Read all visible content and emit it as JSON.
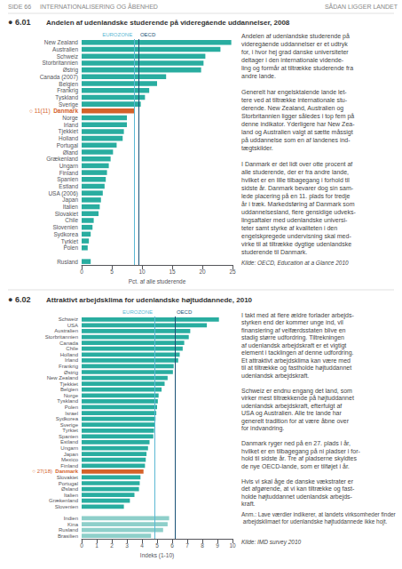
{
  "header": [
    "SIDE 66",
    "INTERNATIONALISERING OG ÅBENHED",
    "SÅDAN LIGGER LANDET"
  ],
  "chart_data": [
    {
      "type": "bar",
      "orientation": "horizontal",
      "title_number": "● 6.01",
      "title": "Andelen af udenlandske studerende på videregáende uddannelser, 2008",
      "xlabel": "Pct. af alle studerende",
      "categories": [
        "New Zealand",
        "Australien",
        "Schweiz",
        "Storbritannien",
        "Østrig",
        "Canada (2007)",
        "Belgien",
        "Frankrig",
        "Tyskland",
        "Sverige",
        "Danmark",
        "Norge",
        "Irland",
        "Tjekkiet",
        "Holland",
        "Portugal",
        "Øland",
        "Grækenland",
        "Ungarn",
        "Finland",
        "Spanien",
        "Estland",
        "USA (2006)",
        "Japan",
        "Italien",
        "Slovakiet",
        "Chile",
        "Slovenien",
        "Sydkorea",
        "Tyrkiet",
        "Polen",
        null,
        "Rusland"
      ],
      "values": [
        24.8,
        23.0,
        20.5,
        20.2,
        19.8,
        14.0,
        12.5,
        11.2,
        10.5,
        9.8,
        8.7,
        7.5,
        7.5,
        7.0,
        6.8,
        5.8,
        5.2,
        4.8,
        4.5,
        4.2,
        4.0,
        3.8,
        3.5,
        3.2,
        3.0,
        2.8,
        2.0,
        1.8,
        1.5,
        1.2,
        1.0,
        0,
        1.5
      ],
      "colors": [
        "#29ADA0",
        "#29ADA0",
        "#29ADA0",
        "#29ADA0",
        "#29ADA0",
        "#29ADA0",
        "#29ADA0",
        "#29ADA0",
        "#29ADA0",
        "#29ADA0",
        "#D4622A",
        "#29ADA0",
        "#29ADA0",
        "#29ADA0",
        "#29ADA0",
        "#29ADA0",
        "#29ADA0",
        "#29ADA0",
        "#29ADA0",
        "#29ADA0",
        "#29ADA0",
        "#29ADA0",
        "#29ADA0",
        "#29ADA0",
        "#29ADA0",
        "#29ADA0",
        "#29ADA0",
        "#29ADA0",
        "#29ADA0",
        "#29ADA0",
        "#29ADA0",
        "#29ADA0",
        "#29ADA0"
      ],
      "highlight": {
        "index": 10,
        "label": "○ 11(11)",
        "color": "#D4622A"
      },
      "reference_lines": [
        {
          "value": 8.7,
          "label": "EUROZONE",
          "color": "#5BB8D4"
        },
        {
          "value": 9.4,
          "label": "OECD",
          "color": "#1A5276"
        }
      ],
      "xlim": [
        0,
        25
      ],
      "xticks": [
        0,
        5,
        10,
        15,
        20,
        25
      ],
      "grid": false,
      "description": [
        [
          "Andelen af udenlandske studerende på",
          "videregáende uddannelser er et udtryk",
          "for, i hvor hej grad danske universiteter",
          "deltager i den internationale vidende-",
          "ling og formår at tiltrække studerende fra",
          "andre lande."
        ],
        [
          "Generelt har engelsktalende lande let-",
          "tere ved at tiltrække internationale stu-",
          "derende. New Zealand, Australien og",
          "Storbritannien ligger således i top fem på",
          "denne indikator. Yderligere har New Zea-",
          "land og Australien valgt at sætte måssigt",
          "på uddannelse som en af landenes ind-",
          "tægtskilder."
        ],
        [
          "I Danmark er det lidt over otte procent af",
          "alle studerende, der er fra andre lande,",
          "hvilket er en lille tilbagegang i forhold til",
          "sidste år. Danmark bevarer dog sin sam-",
          "lede placering på en 11. plads for tredje",
          "år i træk. Markedsføring af Danmark som",
          "uddannelsesland, flere gensidige udveks-",
          "lingsaftaler med udenlandske universi-",
          "teter samt styrke af kvaliteten i den",
          "engelskpregede undervisning skal med-",
          "virke til at tiltrække dygtige udenlandske",
          "studerende til Danmark."
        ]
      ],
      "source": "Kilde: OECD, Education at a Glance 2010"
    },
    {
      "type": "bar",
      "orientation": "horizontal",
      "title_number": "● 6.02",
      "title": "Attraktivt arbejdsklima for udenlandske højtuddannede, 2010",
      "xlabel": "Indeks (1-10)",
      "categories": [
        "Schweiz",
        "USA",
        "Australien",
        "Storbritannien",
        "Canada",
        "Chile",
        "Holland",
        "Irland",
        "Frankrig",
        "Østrig",
        "New Zealand",
        "Tjekkiet",
        "Belgien",
        "Norge",
        "Tyskland",
        "Polen",
        "Israel",
        "Sydkorea",
        "Sverige",
        "Tyrkiet",
        "Spanien",
        "Estland",
        "Ungarn",
        "Japan",
        "Mexico",
        "Finland",
        "Danmark",
        "Slovakiet",
        "Portugal",
        "Øsland",
        "Italien",
        "Grækenland",
        "Slovenien",
        null,
        "Indien",
        "Kina",
        "Rusland",
        "Brasilien"
      ],
      "values": [
        9.1,
        8.3,
        7.2,
        7.1,
        6.8,
        6.7,
        6.5,
        6.4,
        6.1,
        6.05,
        5.7,
        5.5,
        5.3,
        5.1,
        5.05,
        5.0,
        4.95,
        4.9,
        4.85,
        4.8,
        4.75,
        4.5,
        4.4,
        4.3,
        4.25,
        4.2,
        4.1,
        3.9,
        3.85,
        3.8,
        3.5,
        3.2,
        2.8,
        0,
        5.8,
        5.7,
        5.4,
        4.6
      ],
      "colors": [
        "#29ADA0",
        "#29ADA0",
        "#29ADA0",
        "#29ADA0",
        "#29ADA0",
        "#29ADA0",
        "#29ADA0",
        "#29ADA0",
        "#29ADA0",
        "#29ADA0",
        "#29ADA0",
        "#29ADA0",
        "#29ADA0",
        "#29ADA0",
        "#29ADA0",
        "#29ADA0",
        "#29ADA0",
        "#29ADA0",
        "#29ADA0",
        "#29ADA0",
        "#29ADA0",
        "#29ADA0",
        "#29ADA0",
        "#29ADA0",
        "#29ADA0",
        "#29ADA0",
        "#D4622A",
        "#29ADA0",
        "#29ADA0",
        "#29ADA0",
        "#29ADA0",
        "#29ADA0",
        "#29ADA0",
        "#29ADA0",
        "#8ECFCA",
        "#8ECFCA",
        "#8ECFCA",
        "#8ECFCA"
      ],
      "highlight": {
        "index": 26,
        "label": "○ 27(18)",
        "color": "#D4622A"
      },
      "reference_lines": [
        {
          "value": 4.83,
          "label": "EUROZONE",
          "color": "#5BB8D4"
        },
        {
          "value": 6.17,
          "label": "OECD",
          "color": "#1A5276"
        }
      ],
      "xlim": [
        0,
        10
      ],
      "xticks": [
        0,
        1,
        2,
        3,
        4,
        5,
        6,
        7,
        8,
        9,
        10
      ],
      "grid": false,
      "description": [
        [
          "I takt med at flere ældre forlader arbejds-",
          "styrken end der kommer unge ind, vil",
          "finansiering af velfærdsstaten blive en",
          "stadig større udfordring. Tiltrekningen",
          "af udenlandsk arbejdskraft er et vigtigt",
          "element i tacklingen af denne udfordring.",
          "Et attraktivt arbejdsklima kan være med",
          "til at tiltrække og fastholde højtuddannet",
          "udenlandsk arbejdskraft."
        ],
        [
          "Schweiz er endnu engang det land, som",
          "virker mest tiltrækkende på højtuddannet",
          "udenlandsk arbejdskraft, efterfulgt af",
          "USA og Australien. Alle tre lande har",
          "generelt tradition for at være åbne over",
          "for indvandring."
        ],
        [
          "Danmark ryger ned på en 27. plads i år,",
          "hvilket er en tilbagegang på ni pladser i for-",
          "hold til sidste år. Tre af pladserne skyldtes",
          "de nye OECD-lande, som er tilføjet i år."
        ],
        [
          "Hvis vi skal åge de danske vækstrater er",
          "det afgørende, at vi kan tiltrække og fast-",
          "holde højtuddannet udenlandsk arbejds-",
          "kraft."
        ]
      ],
      "note": "Anm.: Lave værdier indikerer, at landets virksomheder finder arbejdsklimaet for udenlandske højtuddannede ikke hojt.",
      "source": "Kilde: IMD survey 2010"
    }
  ]
}
